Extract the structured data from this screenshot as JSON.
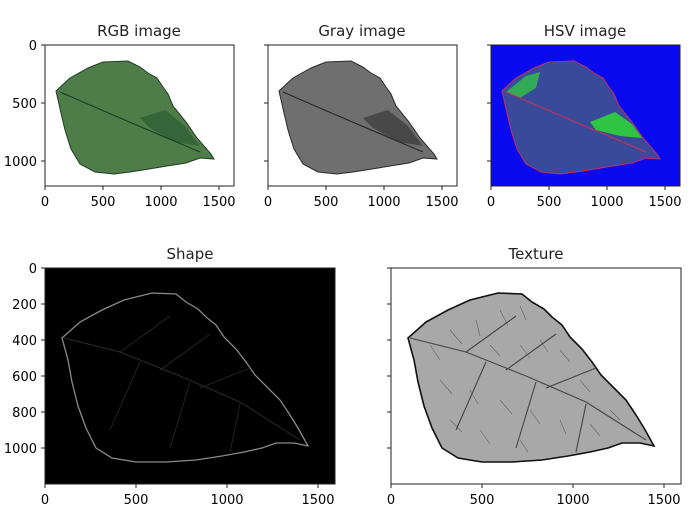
{
  "panels": [
    {
      "id": "rgb",
      "title": "RGB image",
      "x_ticks": [
        "0",
        "500",
        "1000",
        "1500"
      ],
      "y_ticks": [
        "0",
        "500",
        "1000"
      ],
      "background": "#ffffff",
      "leaf_fill": "#4f7d4a",
      "leaf_shade": "#2f5f36",
      "edge": "#1e3d24"
    },
    {
      "id": "gray",
      "title": "Gray image",
      "x_ticks": [
        "0",
        "500",
        "1000",
        "1500"
      ],
      "y_ticks": [
        "",
        "",
        ""
      ],
      "background": "#ffffff",
      "leaf_fill": "#6f6f6f",
      "leaf_shade": "#3e3e3e",
      "edge": "#2a2a2a"
    },
    {
      "id": "hsv",
      "title": "HSV image",
      "x_ticks": [
        "0",
        "500",
        "1000",
        "1500"
      ],
      "y_ticks": [
        "",
        "",
        ""
      ],
      "background": "#0a0af0",
      "leaf_fill": "#3a4a9a",
      "leaf_shade": "#2fd23a",
      "edge": "#c0305a"
    },
    {
      "id": "shape",
      "title": "Shape",
      "x_ticks": [
        "0",
        "500",
        "1000",
        "1500"
      ],
      "y_ticks": [
        "0",
        "200",
        "400",
        "600",
        "800",
        "1000"
      ],
      "background": "#000000",
      "leaf_fill": "none",
      "leaf_shade": "#2a2a2a",
      "edge": "#8a8a8a"
    },
    {
      "id": "texture",
      "title": "Texture",
      "x_ticks": [
        "0",
        "500",
        "1000",
        "1500"
      ],
      "y_ticks": [
        "",
        "",
        "",
        "",
        "",
        ""
      ],
      "background": "#ffffff",
      "leaf_fill": "#a8a8a8",
      "leaf_shade": "#444444",
      "edge": "#111111"
    }
  ]
}
